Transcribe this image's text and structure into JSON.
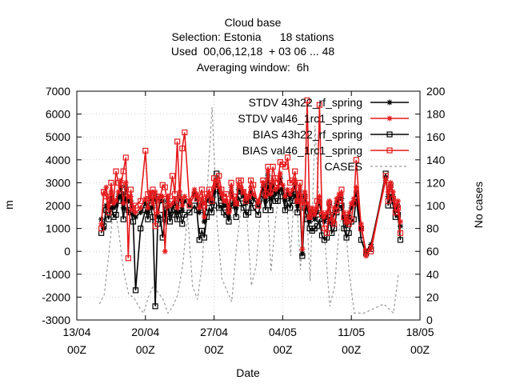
{
  "chart_data": {
    "type": "line",
    "title_lines": [
      "Cloud base",
      "Selection: Estonia      18 stations",
      "Used  00,06,12,18  + 03 06 ... 48",
      "Averaging window:  6h"
    ],
    "xlabel": "Date",
    "ylabel": "m",
    "y2label": "No cases",
    "x_ticks": [
      {
        "t": 0,
        "line1": "13/04",
        "line2": "00Z"
      },
      {
        "t": 7,
        "line1": "20/04",
        "line2": "00Z"
      },
      {
        "t": 14,
        "line1": "27/04",
        "line2": "00Z"
      },
      {
        "t": 21,
        "line1": "04/05",
        "line2": "00Z"
      },
      {
        "t": 28,
        "line1": "11/05",
        "line2": "00Z"
      },
      {
        "t": 35,
        "line1": "18/05",
        "line2": "00Z"
      }
    ],
    "xlim": [
      0,
      35
    ],
    "ylim": [
      -3000,
      7000
    ],
    "y_ticks": [
      -3000,
      -2000,
      -1000,
      0,
      1000,
      2000,
      3000,
      4000,
      5000,
      6000,
      7000
    ],
    "y2lim": [
      0,
      200
    ],
    "y2_ticks": [
      0,
      20,
      40,
      60,
      80,
      100,
      120,
      140,
      160,
      180,
      200
    ],
    "grid": true,
    "legend_position": "top-right",
    "series": [
      {
        "name": "STDV 43h22_rf_spring",
        "color": "#000000",
        "marker": "star",
        "axis": "y",
        "x": [
          2.5,
          2.75,
          3.0,
          3.25,
          3.5,
          3.75,
          4.0,
          4.25,
          4.5,
          4.75,
          5.0,
          5.25,
          5.5,
          5.75,
          6.0,
          6.5,
          7.0,
          7.25,
          7.5,
          7.75,
          8.0,
          8.25,
          8.5,
          8.75,
          9.0,
          9.25,
          9.5,
          9.75,
          10.0,
          10.25,
          10.5,
          10.75,
          11.0,
          11.5,
          12.0,
          12.25,
          12.5,
          12.75,
          13.0,
          13.25,
          13.5,
          13.75,
          14.0,
          14.25,
          14.5,
          14.75,
          15.0,
          15.25,
          15.5,
          15.75,
          16.0,
          16.25,
          16.5,
          16.75,
          17.0,
          17.25,
          17.5,
          17.75,
          18.0,
          18.5,
          19.0,
          19.25,
          19.5,
          19.75,
          20.0,
          20.25,
          20.5,
          20.75,
          21.0,
          21.25,
          21.5,
          21.75,
          22.0,
          22.25,
          22.5,
          22.75,
          23.0,
          23.25,
          23.5,
          23.75,
          24.0,
          24.25,
          24.5,
          24.75,
          25.0,
          25.25,
          25.5,
          25.75,
          26.0,
          26.25,
          26.5,
          26.75,
          27.0,
          27.25,
          27.5,
          27.75,
          28.0,
          28.25,
          28.5,
          29.0,
          29.5,
          30.0,
          31.5,
          31.75,
          32.0,
          32.25,
          32.5,
          32.75,
          33.0
        ],
        "y": [
          1400,
          1000,
          2000,
          1900,
          2300,
          1900,
          2000,
          2400,
          2800,
          1900,
          2800,
          2200,
          2200,
          1600,
          1500,
          1700,
          2100,
          1700,
          2400,
          1900,
          2400,
          1500,
          2200,
          2200,
          1600,
          2200,
          1600,
          1900,
          2100,
          1700,
          2400,
          1800,
          2200,
          2000,
          2500,
          2300,
          1700,
          2100,
          1300,
          2200,
          2300,
          2100,
          2600,
          2900,
          2600,
          2300,
          2000,
          2000,
          1500,
          2600,
          2100,
          1900,
          2700,
          2600,
          2400,
          2100,
          2200,
          2600,
          2300,
          2000,
          2800,
          2200,
          3300,
          2300,
          2900,
          2500,
          2600,
          3200,
          2700,
          2200,
          2500,
          2300,
          2500,
          2900,
          2000,
          2600,
          -100,
          2400,
          1900,
          1300,
          1700,
          1400,
          1700,
          2200,
          1500,
          1300,
          1500,
          2000,
          1200,
          1700,
          2100,
          2300,
          2300,
          1500,
          1100,
          1500,
          1900,
          2100,
          2600,
          1000,
          0,
          300,
          3200,
          2400,
          2800,
          2400,
          1800,
          2000,
          1100
        ]
      },
      {
        "name": "STDV val46_1rc1_spring",
        "color": "#e41a1c",
        "marker": "star",
        "axis": "y",
        "x": [
          2.5,
          2.75,
          3.0,
          3.25,
          3.5,
          3.75,
          4.0,
          4.25,
          4.5,
          4.75,
          5.0,
          5.25,
          5.5,
          5.75,
          6.0,
          6.5,
          7.0,
          7.25,
          7.5,
          7.75,
          8.0,
          8.25,
          8.5,
          8.75,
          9.0,
          9.25,
          9.5,
          9.75,
          10.0,
          10.25,
          10.5,
          10.75,
          11.0,
          11.5,
          12.0,
          12.25,
          12.5,
          12.75,
          13.0,
          13.25,
          13.5,
          13.75,
          14.0,
          14.25,
          14.5,
          14.75,
          15.0,
          15.25,
          15.5,
          15.75,
          16.0,
          16.25,
          16.5,
          16.75,
          17.0,
          17.25,
          17.5,
          17.75,
          18.0,
          18.5,
          19.0,
          19.25,
          19.5,
          19.75,
          20.0,
          20.25,
          20.5,
          20.75,
          21.0,
          21.25,
          21.5,
          21.75,
          22.0,
          22.25,
          22.5,
          22.75,
          23.0,
          23.25,
          23.5,
          23.75,
          24.0,
          24.25,
          24.5,
          24.75,
          25.0,
          25.25,
          25.5,
          25.75,
          26.0,
          26.25,
          26.5,
          26.75,
          27.0,
          27.25,
          27.5,
          27.75,
          28.0,
          28.25,
          28.5,
          29.0,
          29.5,
          30.0,
          31.5,
          31.75,
          32.0,
          32.25,
          32.5,
          32.75,
          33.0
        ],
        "y": [
          1200,
          2500,
          2800,
          2000,
          2600,
          2100,
          2200,
          2600,
          3100,
          2100,
          3000,
          2400,
          2400,
          1800,
          1700,
          1900,
          2300,
          1900,
          2600,
          2100,
          2600,
          1700,
          2400,
          2400,
          0,
          2400,
          2000,
          2100,
          2300,
          1900,
          2600,
          2000,
          2400,
          2200,
          2700,
          2500,
          1900,
          2300,
          1500,
          2400,
          2500,
          2300,
          2800,
          3100,
          2800,
          2500,
          2200,
          2200,
          1700,
          2800,
          2300,
          2100,
          2900,
          2800,
          2600,
          2300,
          2400,
          2800,
          2500,
          2200,
          3000,
          2400,
          3500,
          2500,
          3100,
          2700,
          2800,
          3400,
          2900,
          2400,
          2700,
          2500,
          2700,
          3100,
          2200,
          2800,
          100,
          2600,
          2100,
          1500,
          1900,
          1600,
          1900,
          2400,
          1700,
          1500,
          1700,
          2200,
          1400,
          1900,
          2300,
          2500,
          2500,
          1700,
          1300,
          1700,
          2100,
          2300,
          2800,
          1200,
          -200,
          200,
          3100,
          2600,
          3000,
          2600,
          2000,
          2200,
          1300
        ]
      },
      {
        "name": "BIAS 43h22_rf_spring",
        "color": "#000000",
        "marker": "square",
        "axis": "y",
        "x": [
          2.5,
          2.75,
          3.0,
          3.25,
          3.5,
          3.75,
          4.0,
          4.25,
          4.5,
          4.75,
          5.0,
          5.25,
          5.5,
          5.75,
          6.0,
          6.5,
          7.0,
          7.25,
          7.5,
          7.75,
          8.0,
          8.25,
          8.5,
          8.75,
          9.0,
          9.25,
          9.5,
          9.75,
          10.0,
          10.25,
          10.5,
          10.75,
          11.0,
          11.5,
          12.0,
          12.25,
          12.5,
          12.75,
          13.0,
          13.25,
          13.5,
          13.75,
          14.0,
          14.25,
          14.5,
          14.75,
          15.0,
          15.25,
          15.5,
          15.75,
          16.0,
          16.25,
          16.5,
          16.75,
          17.0,
          17.25,
          17.5,
          17.75,
          18.0,
          18.5,
          19.0,
          19.25,
          19.5,
          19.75,
          20.0,
          20.25,
          20.5,
          20.75,
          21.0,
          21.25,
          21.5,
          21.75,
          22.0,
          22.25,
          22.5,
          22.75,
          23.0,
          23.25,
          23.5,
          23.75,
          24.0,
          24.25,
          24.5,
          24.75,
          25.0,
          25.25,
          25.5,
          25.75,
          26.0,
          26.25,
          26.5,
          26.75,
          27.0,
          27.25,
          27.5,
          27.75,
          28.0,
          28.25,
          28.5,
          29.0,
          29.5,
          30.0,
          31.5,
          31.75,
          32.0,
          32.25,
          32.5,
          32.75,
          33.0
        ],
        "y": [
          800,
          1100,
          1800,
          1400,
          2000,
          1500,
          1600,
          2200,
          2500,
          1400,
          2400,
          1800,
          1700,
          1300,
          -1700,
          1000,
          1800,
          1400,
          2000,
          1500,
          -2400,
          1200,
          1600,
          600,
          1400,
          2000,
          1300,
          1600,
          1800,
          1400,
          1800,
          1200,
          1600,
          1700,
          2000,
          1800,
          500,
          900,
          600,
          1500,
          1900,
          1700,
          2000,
          3400,
          1900,
          2000,
          1700,
          1600,
          1300,
          2000,
          2000,
          1500,
          2400,
          2100,
          1900,
          1600,
          1700,
          2200,
          1900,
          1600,
          2500,
          1800,
          2900,
          1800,
          2500,
          2200,
          2200,
          2800,
          2400,
          1800,
          2100,
          1900,
          2200,
          2500,
          1700,
          2300,
          -200,
          1900,
          1400,
          1000,
          900,
          1000,
          1100,
          1400,
          700,
          500,
          600,
          1500,
          800,
          1000,
          1700,
          1900,
          2000,
          1000,
          600,
          800,
          1300,
          1400,
          2300,
          500,
          -100,
          100,
          3400,
          2000,
          2500,
          2000,
          1500,
          1600,
          500
        ]
      },
      {
        "name": "BIAS val46_1rc1_spring",
        "color": "#e41a1c",
        "marker": "square",
        "axis": "y",
        "x": [
          2.5,
          2.75,
          3.0,
          3.25,
          3.5,
          3.75,
          4.0,
          4.25,
          4.5,
          4.75,
          5.0,
          5.25,
          5.5,
          5.75,
          6.0,
          6.5,
          7.0,
          7.25,
          7.5,
          7.75,
          8.0,
          8.25,
          8.5,
          8.75,
          9.0,
          9.25,
          9.5,
          9.75,
          10.0,
          10.25,
          10.5,
          10.75,
          11.0,
          11.5,
          12.0,
          12.25,
          12.5,
          12.75,
          13.0,
          13.25,
          13.5,
          13.75,
          14.0,
          14.25,
          14.5,
          14.75,
          15.0,
          15.25,
          15.5,
          15.75,
          16.0,
          16.25,
          16.5,
          16.75,
          17.0,
          17.25,
          17.5,
          17.75,
          18.0,
          18.5,
          19.0,
          19.25,
          19.5,
          19.75,
          20.0,
          20.25,
          20.5,
          20.75,
          21.0,
          21.25,
          21.5,
          21.75,
          22.0,
          22.25,
          22.5,
          22.75,
          23.0,
          23.25,
          23.5,
          23.75,
          24.0,
          24.25,
          24.5,
          24.75,
          25.0,
          25.25,
          25.5,
          25.75,
          26.0,
          26.25,
          26.5,
          26.75,
          27.0,
          27.25,
          27.5,
          27.75,
          28.0,
          28.25,
          28.5,
          29.0,
          29.5,
          30.0,
          31.5,
          31.75,
          32.0,
          32.25,
          32.5,
          32.75,
          33.0
        ],
        "y": [
          1000,
          2600,
          2400,
          1700,
          3000,
          2200,
          3500,
          3000,
          2900,
          3500,
          4100,
          -300,
          2700,
          1900,
          2000,
          2200,
          4400,
          2500,
          2300,
          2700,
          1100,
          2400,
          2300,
          2900,
          2800,
          2000,
          2400,
          3300,
          2500,
          4800,
          2300,
          4500,
          5200,
          2000,
          2500,
          2300,
          2400,
          2700,
          2000,
          2500,
          2700,
          2200,
          3200,
          3000,
          3300,
          2700,
          2400,
          2500,
          1800,
          3000,
          2400,
          2100,
          3100,
          3100,
          2600,
          2200,
          2400,
          3100,
          2900,
          2000,
          3100,
          2500,
          3700,
          2600,
          3700,
          3200,
          3000,
          3900,
          3800,
          3700,
          4100,
          3000,
          3100,
          3500,
          2200,
          3000,
          2000,
          2400,
          6600,
          1500,
          1700,
          1800,
          2200,
          6400,
          1600,
          1000,
          800,
          2100,
          1300,
          1200,
          1800,
          2200,
          2700,
          1500,
          1300,
          1200,
          1400,
          2100,
          4000,
          1000,
          0,
          0,
          3300,
          2200,
          2900,
          2300,
          1700,
          1900,
          800
        ]
      },
      {
        "name": "CASES",
        "color": "#999999",
        "marker": "none",
        "dashed": true,
        "axis": "y2",
        "x": [
          2.3,
          2.8,
          3.3,
          3.8,
          4.3,
          4.8,
          5.3,
          5.8,
          6.3,
          6.8,
          7.3,
          7.8,
          8.3,
          8.8,
          9.3,
          9.8,
          10.3,
          10.8,
          11.3,
          11.8,
          12.3,
          12.8,
          13.3,
          13.8,
          14.3,
          14.8,
          15.3,
          15.8,
          16.3,
          16.8,
          17.3,
          17.8,
          18.3,
          18.8,
          19.3,
          19.8,
          20.3,
          20.8,
          21.3,
          21.8,
          22.3,
          22.8,
          23.3,
          23.8,
          24.3,
          24.8,
          25.3,
          25.8,
          26.3,
          26.8,
          27.3,
          27.8,
          28.3,
          28.8,
          29.3,
          29.8,
          30.3,
          30.8,
          31.3,
          31.8,
          32.3,
          32.8
        ],
        "y": [
          14,
          22,
          60,
          104,
          75,
          42,
          22,
          20,
          12,
          6,
          20,
          30,
          24,
          18,
          6,
          12,
          22,
          48,
          92,
          30,
          18,
          50,
          114,
          186,
          84,
          36,
          26,
          16,
          66,
          100,
          96,
          30,
          48,
          102,
          130,
          42,
          90,
          122,
          116,
          56,
          130,
          44,
          120,
          34,
          170,
          90,
          70,
          12,
          30,
          84,
          94,
          40,
          6,
          6,
          6,
          8,
          10,
          12,
          14,
          10,
          6,
          40
        ]
      }
    ]
  }
}
